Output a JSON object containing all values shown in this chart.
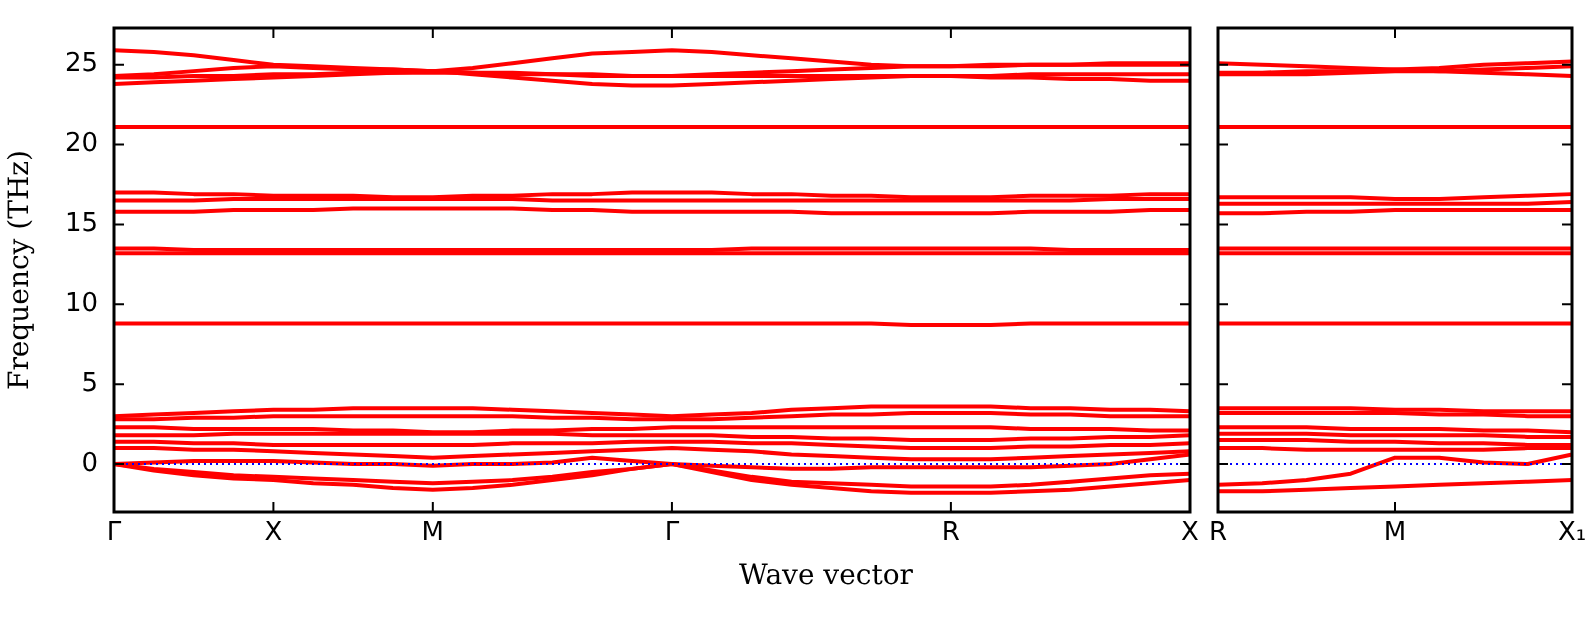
{
  "chart_data": [
    {
      "type": "line",
      "ylabel": "Frequency (THz)",
      "xlabel": "Wave vector",
      "ylim": [
        -3,
        27.3
      ],
      "yticks": [
        0,
        5,
        10,
        15,
        20,
        25
      ],
      "grid": false,
      "legend": false,
      "marker": "none",
      "line_style": "solid",
      "categories": [
        "Γ",
        null,
        null,
        null,
        "X",
        null,
        null,
        null,
        "M",
        null,
        null,
        null,
        null,
        null,
        "Γ",
        null,
        null,
        null,
        null,
        null,
        null,
        "R",
        null,
        null,
        null,
        null,
        null,
        "X"
      ],
      "ref_lines": [
        {
          "axis": "y",
          "value": 0,
          "color": "#0000ff",
          "line_style": "dotted"
        }
      ],
      "series": [
        {
          "color": "#ff0000",
          "values": [
            25.9,
            25.8,
            25.6,
            25.3,
            25.0,
            24.9,
            24.8,
            24.7,
            24.6,
            24.8,
            25.1,
            25.4,
            25.7,
            25.8,
            25.9,
            25.8,
            25.6,
            25.4,
            25.2,
            25.0,
            24.9,
            24.9,
            24.9,
            25.0,
            25.0,
            25.0,
            25.0,
            25.0
          ]
        },
        {
          "color": "#ff0000",
          "values": [
            24.3,
            24.4,
            24.6,
            24.8,
            24.9,
            24.8,
            24.7,
            24.7,
            24.6,
            24.5,
            24.5,
            24.4,
            24.4,
            24.3,
            24.3,
            24.4,
            24.5,
            24.6,
            24.7,
            24.8,
            24.9,
            24.9,
            25.0,
            25.0,
            25.0,
            25.1,
            25.1,
            25.1
          ]
        },
        {
          "color": "#ff0000",
          "values": [
            23.8,
            23.9,
            24.0,
            24.1,
            24.2,
            24.3,
            24.4,
            24.5,
            24.6,
            24.4,
            24.2,
            24.0,
            23.8,
            23.7,
            23.7,
            23.8,
            23.9,
            24.0,
            24.1,
            24.2,
            24.3,
            24.3,
            24.3,
            24.4,
            24.4,
            24.4,
            24.4,
            24.4
          ]
        },
        {
          "color": "#ff0000",
          "values": [
            24.2,
            24.2,
            24.3,
            24.3,
            24.4,
            24.4,
            24.5,
            24.5,
            24.5,
            24.5,
            24.4,
            24.4,
            24.3,
            24.3,
            24.3,
            24.3,
            24.3,
            24.3,
            24.3,
            24.3,
            24.3,
            24.3,
            24.2,
            24.2,
            24.1,
            24.1,
            24.0,
            24.0
          ]
        },
        {
          "color": "#ff0000",
          "values": [
            21.1,
            21.1,
            21.1,
            21.1,
            21.1,
            21.1,
            21.1,
            21.1,
            21.1,
            21.1,
            21.1,
            21.1,
            21.1,
            21.1,
            21.1,
            21.1,
            21.1,
            21.1,
            21.1,
            21.1,
            21.1,
            21.1,
            21.1,
            21.1,
            21.1,
            21.1,
            21.1,
            21.1
          ]
        },
        {
          "color": "#ff0000",
          "values": [
            17.0,
            17.0,
            16.9,
            16.9,
            16.8,
            16.8,
            16.8,
            16.7,
            16.7,
            16.8,
            16.8,
            16.9,
            16.9,
            17.0,
            17.0,
            17.0,
            16.9,
            16.9,
            16.8,
            16.8,
            16.7,
            16.7,
            16.7,
            16.8,
            16.8,
            16.8,
            16.9,
            16.9
          ]
        },
        {
          "color": "#ff0000",
          "values": [
            16.5,
            16.5,
            16.5,
            16.6,
            16.6,
            16.6,
            16.6,
            16.6,
            16.6,
            16.6,
            16.6,
            16.5,
            16.5,
            16.5,
            16.5,
            16.5,
            16.5,
            16.5,
            16.5,
            16.5,
            16.5,
            16.5,
            16.5,
            16.5,
            16.5,
            16.6,
            16.6,
            16.6
          ]
        },
        {
          "color": "#ff0000",
          "values": [
            15.8,
            15.8,
            15.8,
            15.9,
            15.9,
            15.9,
            16.0,
            16.0,
            16.0,
            16.0,
            16.0,
            15.9,
            15.9,
            15.8,
            15.8,
            15.8,
            15.8,
            15.8,
            15.7,
            15.7,
            15.7,
            15.7,
            15.7,
            15.8,
            15.8,
            15.8,
            15.9,
            15.9
          ]
        },
        {
          "color": "#ff0000",
          "values": [
            13.5,
            13.5,
            13.4,
            13.4,
            13.4,
            13.4,
            13.4,
            13.4,
            13.4,
            13.4,
            13.4,
            13.4,
            13.4,
            13.4,
            13.4,
            13.4,
            13.5,
            13.5,
            13.5,
            13.5,
            13.5,
            13.5,
            13.5,
            13.5,
            13.4,
            13.4,
            13.4,
            13.4
          ]
        },
        {
          "color": "#ff0000",
          "values": [
            13.2,
            13.2,
            13.2,
            13.2,
            13.2,
            13.2,
            13.2,
            13.2,
            13.2,
            13.2,
            13.2,
            13.2,
            13.2,
            13.2,
            13.2,
            13.2,
            13.2,
            13.2,
            13.2,
            13.2,
            13.2,
            13.2,
            13.2,
            13.2,
            13.2,
            13.2,
            13.2,
            13.2
          ]
        },
        {
          "color": "#ff0000",
          "values": [
            8.8,
            8.8,
            8.8,
            8.8,
            8.8,
            8.8,
            8.8,
            8.8,
            8.8,
            8.8,
            8.8,
            8.8,
            8.8,
            8.8,
            8.8,
            8.8,
            8.8,
            8.8,
            8.8,
            8.8,
            8.7,
            8.7,
            8.7,
            8.8,
            8.8,
            8.8,
            8.8,
            8.8
          ]
        },
        {
          "color": "#ff0000",
          "values": [
            3.0,
            3.1,
            3.2,
            3.3,
            3.4,
            3.4,
            3.5,
            3.5,
            3.5,
            3.5,
            3.4,
            3.3,
            3.2,
            3.1,
            3.0,
            3.1,
            3.2,
            3.4,
            3.5,
            3.6,
            3.6,
            3.6,
            3.6,
            3.5,
            3.5,
            3.4,
            3.4,
            3.3
          ]
        },
        {
          "color": "#ff0000",
          "values": [
            2.8,
            2.8,
            2.9,
            2.9,
            3.0,
            3.0,
            3.0,
            3.0,
            3.0,
            3.0,
            3.0,
            2.9,
            2.9,
            2.8,
            2.8,
            2.8,
            2.9,
            3.0,
            3.1,
            3.1,
            3.2,
            3.2,
            3.2,
            3.1,
            3.1,
            3.0,
            3.0,
            3.0
          ]
        },
        {
          "color": "#ff0000",
          "values": [
            2.3,
            2.3,
            2.2,
            2.2,
            2.2,
            2.2,
            2.1,
            2.1,
            2.0,
            2.0,
            2.1,
            2.1,
            2.2,
            2.2,
            2.3,
            2.3,
            2.3,
            2.3,
            2.3,
            2.3,
            2.3,
            2.3,
            2.3,
            2.2,
            2.2,
            2.2,
            2.1,
            2.1
          ]
        },
        {
          "color": "#ff0000",
          "values": [
            1.8,
            1.8,
            1.8,
            1.9,
            1.9,
            1.9,
            1.9,
            1.9,
            1.9,
            1.9,
            1.9,
            1.9,
            1.8,
            1.8,
            1.8,
            1.8,
            1.7,
            1.7,
            1.6,
            1.6,
            1.5,
            1.5,
            1.5,
            1.6,
            1.6,
            1.7,
            1.7,
            1.8
          ]
        },
        {
          "color": "#ff0000",
          "values": [
            1.4,
            1.4,
            1.3,
            1.3,
            1.2,
            1.2,
            1.2,
            1.2,
            1.2,
            1.2,
            1.3,
            1.3,
            1.3,
            1.4,
            1.4,
            1.4,
            1.3,
            1.3,
            1.2,
            1.1,
            1.0,
            1.0,
            1.0,
            1.1,
            1.1,
            1.2,
            1.2,
            1.3
          ]
        },
        {
          "color": "#ff0000",
          "values": [
            1.0,
            1.0,
            0.9,
            0.9,
            0.8,
            0.7,
            0.6,
            0.5,
            0.4,
            0.5,
            0.6,
            0.7,
            0.8,
            0.9,
            1.0,
            0.9,
            0.8,
            0.6,
            0.5,
            0.4,
            0.3,
            0.3,
            0.3,
            0.4,
            0.5,
            0.6,
            0.7,
            0.8
          ]
        },
        {
          "color": "#ff0000",
          "values": [
            0,
            0.1,
            0.2,
            0.2,
            0.2,
            0.1,
            0.0,
            0.0,
            -0.1,
            0.0,
            0.0,
            0.1,
            0.4,
            0.2,
            0,
            -0.1,
            -0.2,
            -0.3,
            -0.3,
            -0.2,
            -0.2,
            -0.2,
            -0.2,
            -0.2,
            -0.1,
            0.0,
            0.3,
            0.6
          ]
        },
        {
          "color": "#ff0000",
          "values": [
            0,
            -0.3,
            -0.5,
            -0.7,
            -0.8,
            -0.9,
            -1.0,
            -1.1,
            -1.2,
            -1.1,
            -1.0,
            -0.8,
            -0.5,
            -0.3,
            0,
            -0.4,
            -0.8,
            -1.1,
            -1.2,
            -1.3,
            -1.4,
            -1.4,
            -1.4,
            -1.3,
            -1.1,
            -0.9,
            -0.7,
            -0.6
          ]
        },
        {
          "color": "#ff0000",
          "values": [
            0,
            -0.4,
            -0.7,
            -0.9,
            -1.0,
            -1.2,
            -1.3,
            -1.5,
            -1.6,
            -1.5,
            -1.3,
            -1.0,
            -0.7,
            -0.3,
            0,
            -0.5,
            -1.0,
            -1.3,
            -1.5,
            -1.7,
            -1.8,
            -1.8,
            -1.8,
            -1.7,
            -1.6,
            -1.4,
            -1.2,
            -1.0
          ]
        }
      ]
    },
    {
      "type": "line",
      "ylim": [
        -3,
        27.3
      ],
      "yticks": [
        0,
        5,
        10,
        15,
        20,
        25
      ],
      "tick_labels": "x",
      "grid": false,
      "legend": false,
      "marker": "none",
      "line_style": "solid",
      "categories": [
        "R",
        null,
        null,
        null,
        "M",
        null,
        null,
        null,
        "X₁"
      ],
      "ref_lines": [
        {
          "axis": "y",
          "value": 0,
          "color": "#0000ff",
          "line_style": "dotted"
        }
      ],
      "series": [
        {
          "color": "#ff0000",
          "values": [
            25.1,
            25.0,
            24.9,
            24.8,
            24.7,
            24.6,
            24.5,
            24.4,
            24.3
          ]
        },
        {
          "color": "#ff0000",
          "values": [
            24.5,
            24.5,
            24.6,
            24.6,
            24.7,
            24.8,
            25.0,
            25.1,
            25.2
          ]
        },
        {
          "color": "#ff0000",
          "values": [
            24.4,
            24.4,
            24.4,
            24.5,
            24.6,
            24.6,
            24.7,
            24.8,
            24.9
          ]
        },
        {
          "color": "#ff0000",
          "values": [
            21.1,
            21.1,
            21.1,
            21.1,
            21.1,
            21.1,
            21.1,
            21.1,
            21.1
          ]
        },
        {
          "color": "#ff0000",
          "values": [
            16.7,
            16.7,
            16.7,
            16.7,
            16.6,
            16.6,
            16.7,
            16.8,
            16.9
          ]
        },
        {
          "color": "#ff0000",
          "values": [
            16.3,
            16.3,
            16.3,
            16.3,
            16.3,
            16.3,
            16.3,
            16.3,
            16.4
          ]
        },
        {
          "color": "#ff0000",
          "values": [
            15.7,
            15.7,
            15.8,
            15.8,
            15.9,
            15.9,
            15.9,
            15.9,
            15.9
          ]
        },
        {
          "color": "#ff0000",
          "values": [
            13.5,
            13.5,
            13.5,
            13.5,
            13.5,
            13.5,
            13.5,
            13.5,
            13.5
          ]
        },
        {
          "color": "#ff0000",
          "values": [
            13.2,
            13.2,
            13.2,
            13.2,
            13.2,
            13.2,
            13.2,
            13.2,
            13.2
          ]
        },
        {
          "color": "#ff0000",
          "values": [
            8.8,
            8.8,
            8.8,
            8.8,
            8.8,
            8.8,
            8.8,
            8.8,
            8.8
          ]
        },
        {
          "color": "#ff0000",
          "values": [
            3.5,
            3.5,
            3.5,
            3.5,
            3.4,
            3.4,
            3.3,
            3.3,
            3.3
          ]
        },
        {
          "color": "#ff0000",
          "values": [
            3.2,
            3.2,
            3.2,
            3.2,
            3.2,
            3.1,
            3.1,
            3.0,
            3.0
          ]
        },
        {
          "color": "#ff0000",
          "values": [
            2.3,
            2.3,
            2.3,
            2.2,
            2.2,
            2.2,
            2.1,
            2.1,
            2.0
          ]
        },
        {
          "color": "#ff0000",
          "values": [
            1.9,
            1.9,
            1.9,
            1.8,
            1.8,
            1.8,
            1.8,
            1.7,
            1.7
          ]
        },
        {
          "color": "#ff0000",
          "values": [
            1.5,
            1.5,
            1.5,
            1.4,
            1.4,
            1.3,
            1.3,
            1.2,
            1.2
          ]
        },
        {
          "color": "#ff0000",
          "values": [
            1.0,
            1.0,
            0.9,
            0.9,
            0.9,
            0.9,
            0.9,
            1.0,
            1.0
          ]
        },
        {
          "color": "#ff0000",
          "values": [
            -1.3,
            -1.2,
            -1.0,
            -0.6,
            0.4,
            0.4,
            0.1,
            0.0,
            0.6
          ]
        },
        {
          "color": "#ff0000",
          "values": [
            -1.7,
            -1.7,
            -1.6,
            -1.5,
            -1.4,
            -1.3,
            -1.2,
            -1.1,
            -1.0
          ]
        }
      ]
    }
  ]
}
